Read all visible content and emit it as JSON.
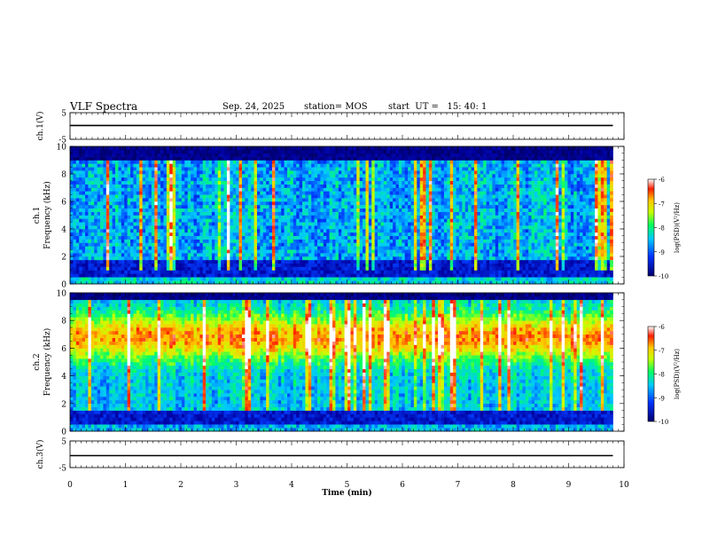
{
  "header": {
    "title": "VLF Spectra",
    "date": "Sep. 24, 2025",
    "station": "station= MOS",
    "start": "start  UT =   15: 40: 1"
  },
  "chart_data": [
    {
      "type": "line",
      "panel": "ch1-voltage",
      "ylabel": "ch.1(V)",
      "ylim": [
        -5,
        5
      ],
      "yticks": [
        "5",
        "-5"
      ],
      "series": [
        {
          "x": [
            0,
            9.8
          ],
          "y": [
            0.2,
            0.2
          ]
        }
      ]
    },
    {
      "type": "heatmap",
      "panel": "ch1-spectrogram",
      "ylabel": "ch.1\nFrequency (kHz)",
      "ylim": [
        0,
        10
      ],
      "yticks": [
        "0",
        "2",
        "4",
        "6",
        "8",
        "10"
      ],
      "xlim": [
        0,
        10
      ],
      "time_extent_min": 9.8,
      "colorbar": {
        "label": "log(PSD)(V²/Hz)",
        "range": [
          -10,
          -6
        ],
        "ticks": [
          "-6",
          "-7",
          "-8",
          "-9",
          "-10"
        ]
      }
    },
    {
      "type": "heatmap",
      "panel": "ch2-spectrogram",
      "ylabel": "ch.2\nFrequency (kHz)",
      "ylim": [
        0,
        10
      ],
      "yticks": [
        "0",
        "2",
        "4",
        "6",
        "8",
        "10"
      ],
      "xlim": [
        0,
        10
      ],
      "time_extent_min": 9.8,
      "colorbar": {
        "label": "log(PSD)(V²/Hz)",
        "range": [
          -10,
          -6
        ],
        "ticks": [
          "-6",
          "-7",
          "-8",
          "-9",
          "-10"
        ]
      }
    },
    {
      "type": "line",
      "panel": "ch3-voltage",
      "ylabel": "ch.3(V)",
      "ylim": [
        -5,
        5
      ],
      "yticks": [
        "5",
        "-5"
      ],
      "xlabel": "Time  (min)",
      "xticks": [
        "0",
        "1",
        "2",
        "3",
        "4",
        "5",
        "6",
        "7",
        "8",
        "9",
        "10"
      ],
      "series": [
        {
          "x": [
            0,
            9.8
          ],
          "y": [
            -0.5,
            -0.5
          ]
        }
      ]
    }
  ]
}
